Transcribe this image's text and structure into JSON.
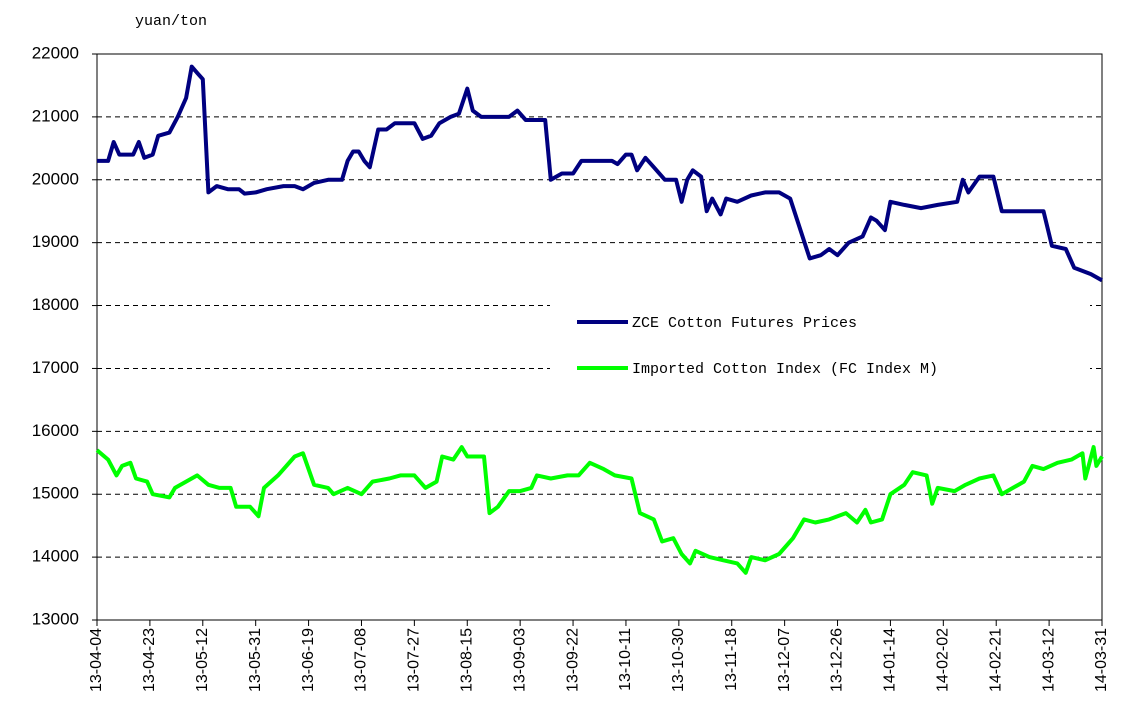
{
  "chart_data": {
    "type": "line",
    "y_unit_label": "yuan/ton",
    "xlim": [
      "13-04-04",
      "14-03-31"
    ],
    "xticks": [
      "13-04-04",
      "13-04-23",
      "13-05-12",
      "13-05-31",
      "13-06-19",
      "13-07-08",
      "13-07-27",
      "13-08-15",
      "13-09-03",
      "13-09-22",
      "13-10-11",
      "13-10-30",
      "13-11-18",
      "13-12-07",
      "13-12-26",
      "14-01-14",
      "14-02-02",
      "14-02-21",
      "14-03-12",
      "14-03-31"
    ],
    "ylim": [
      13000,
      22000
    ],
    "yticks": [
      13000,
      14000,
      15000,
      16000,
      17000,
      18000,
      19000,
      20000,
      21000,
      22000
    ],
    "grid": true,
    "legend": "center right",
    "series": [
      {
        "name": "ZCE Cotton Futures Prices",
        "color": "#000080",
        "x": [
          "13-04-04",
          "13-04-08",
          "13-04-10",
          "13-04-12",
          "13-04-17",
          "13-04-19",
          "13-04-21",
          "13-04-24",
          "13-04-26",
          "13-04-30",
          "13-05-03",
          "13-05-06",
          "13-05-08",
          "13-05-10",
          "13-05-12",
          "13-05-14",
          "13-05-17",
          "13-05-21",
          "13-05-25",
          "13-05-27",
          "13-05-31",
          "13-06-04",
          "13-06-10",
          "13-06-14",
          "13-06-17",
          "13-06-21",
          "13-06-26",
          "13-07-01",
          "13-07-03",
          "13-07-05",
          "13-07-07",
          "13-07-09",
          "13-07-11",
          "13-07-14",
          "13-07-17",
          "13-07-20",
          "13-07-24",
          "13-07-27",
          "13-07-30",
          "13-08-02",
          "13-08-05",
          "13-08-09",
          "13-08-12",
          "13-08-15",
          "13-08-17",
          "13-08-20",
          "13-08-25",
          "13-08-30",
          "13-09-02",
          "13-09-05",
          "13-09-09",
          "13-09-12",
          "13-09-14",
          "13-09-18",
          "13-09-22",
          "13-09-25",
          "13-09-30",
          "13-10-06",
          "13-10-08",
          "13-10-11",
          "13-10-13",
          "13-10-15",
          "13-10-18",
          "13-10-21",
          "13-10-25",
          "13-10-29",
          "13-10-31",
          "13-11-02",
          "13-11-04",
          "13-11-07",
          "13-11-09",
          "13-11-11",
          "13-11-14",
          "13-11-16",
          "13-11-20",
          "13-11-25",
          "13-11-30",
          "13-12-05",
          "13-12-09",
          "13-12-16",
          "13-12-20",
          "13-12-23",
          "13-12-26",
          "13-12-30",
          "14-01-04",
          "14-01-07",
          "14-01-09",
          "14-01-12",
          "14-01-14",
          "14-01-19",
          "14-01-25",
          "14-01-31",
          "14-02-07",
          "14-02-09",
          "14-02-11",
          "14-02-15",
          "14-02-20",
          "14-02-23",
          "14-02-28",
          "14-03-05",
          "14-03-10",
          "14-03-13",
          "14-03-18",
          "14-03-21",
          "14-03-27",
          "14-03-31"
        ],
        "values": [
          20300,
          20300,
          20600,
          20400,
          20400,
          20600,
          20350,
          20400,
          20700,
          20750,
          21000,
          21300,
          21800,
          21700,
          21600,
          19800,
          19900,
          19850,
          19850,
          19780,
          19800,
          19850,
          19900,
          19900,
          19850,
          19950,
          20000,
          20000,
          20300,
          20450,
          20450,
          20300,
          20200,
          20800,
          20800,
          20900,
          20900,
          20900,
          20650,
          20700,
          20900,
          21000,
          21050,
          21450,
          21100,
          21000,
          21000,
          21000,
          21100,
          20950,
          20950,
          20950,
          20000,
          20100,
          20100,
          20300,
          20300,
          20300,
          20250,
          20400,
          20400,
          20150,
          20350,
          20200,
          20000,
          20000,
          19650,
          20000,
          20150,
          20050,
          19500,
          19700,
          19450,
          19700,
          19650,
          19750,
          19800,
          19800,
          19700,
          18750,
          18800,
          18900,
          18800,
          19000,
          19100,
          19400,
          19350,
          19200,
          19650,
          19600,
          19550,
          19600,
          19650,
          20000,
          19800,
          20050,
          20050,
          19500,
          19500,
          19500,
          19500,
          18950,
          18900,
          18600,
          18500,
          18400
        ]
      },
      {
        "name": "Imported Cotton Index (FC Index M)",
        "color": "#00ff00",
        "x": [
          "13-04-04",
          "13-04-08",
          "13-04-11",
          "13-04-13",
          "13-04-16",
          "13-04-18",
          "13-04-22",
          "13-04-24",
          "13-04-30",
          "13-05-02",
          "13-05-06",
          "13-05-10",
          "13-05-14",
          "13-05-18",
          "13-05-22",
          "13-05-24",
          "13-05-29",
          "13-06-01",
          "13-06-03",
          "13-06-08",
          "13-06-14",
          "13-06-17",
          "13-06-21",
          "13-06-26",
          "13-06-28",
          "13-07-03",
          "13-07-08",
          "13-07-12",
          "13-07-18",
          "13-07-22",
          "13-07-27",
          "13-07-31",
          "13-08-04",
          "13-08-06",
          "13-08-10",
          "13-08-13",
          "13-08-15",
          "13-08-21",
          "13-08-23",
          "13-08-26",
          "13-08-30",
          "13-09-03",
          "13-09-07",
          "13-09-09",
          "13-09-14",
          "13-09-20",
          "13-09-24",
          "13-09-28",
          "13-10-03",
          "13-10-07",
          "13-10-13",
          "13-10-16",
          "13-10-21",
          "13-10-24",
          "13-10-28",
          "13-10-31",
          "13-11-03",
          "13-11-05",
          "13-11-10",
          "13-11-15",
          "13-11-20",
          "13-11-23",
          "13-11-25",
          "13-11-30",
          "13-12-05",
          "13-12-10",
          "13-12-14",
          "13-12-18",
          "13-12-23",
          "13-12-29",
          "14-01-02",
          "14-01-05",
          "14-01-07",
          "14-01-11",
          "14-01-14",
          "14-01-19",
          "14-01-22",
          "14-01-27",
          "14-01-29",
          "14-01-31",
          "14-02-06",
          "14-02-10",
          "14-02-15",
          "14-02-20",
          "14-02-23",
          "14-02-27",
          "14-03-03",
          "14-03-06",
          "14-03-10",
          "14-03-15",
          "14-03-20",
          "14-03-24",
          "14-03-25",
          "14-03-28",
          "14-03-29",
          "14-03-31"
        ],
        "values": [
          15700,
          15550,
          15300,
          15450,
          15500,
          15250,
          15200,
          15000,
          14950,
          15100,
          15200,
          15300,
          15150,
          15100,
          15100,
          14800,
          14800,
          14650,
          15100,
          15300,
          15600,
          15650,
          15150,
          15100,
          15000,
          15100,
          15000,
          15200,
          15250,
          15300,
          15300,
          15100,
          15200,
          15600,
          15550,
          15750,
          15600,
          15600,
          14700,
          14800,
          15050,
          15050,
          15100,
          15300,
          15250,
          15300,
          15300,
          15500,
          15400,
          15300,
          15250,
          14700,
          14600,
          14250,
          14300,
          14050,
          13900,
          14100,
          14000,
          13950,
          13900,
          13750,
          14000,
          13950,
          14050,
          14300,
          14600,
          14550,
          14600,
          14700,
          14550,
          14750,
          14550,
          14600,
          15000,
          15150,
          15350,
          15300,
          14850,
          15100,
          15050,
          15150,
          15250,
          15300,
          15000,
          15100,
          15200,
          15450,
          15400,
          15500,
          15550,
          15650,
          15250,
          15750,
          15450,
          15600
        ]
      }
    ]
  }
}
